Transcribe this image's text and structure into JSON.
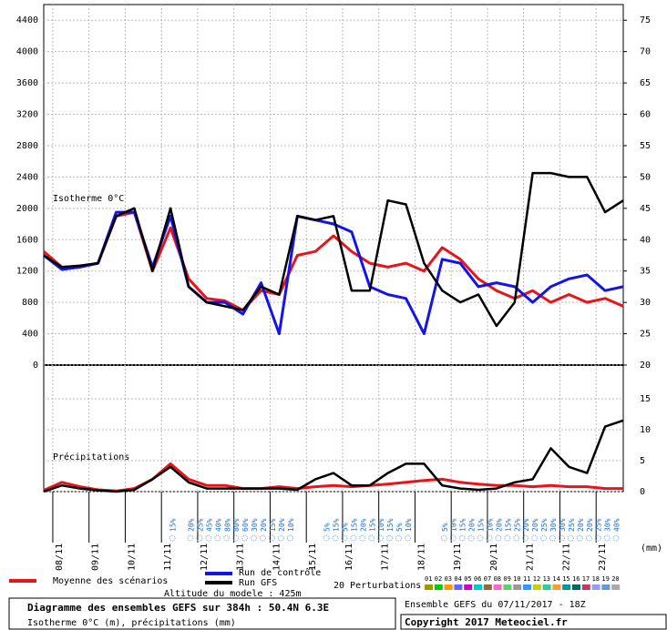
{
  "chart_data": [
    {
      "type": "line",
      "annotation": "Isotherme 0°C",
      "x": [
        0,
        12,
        24,
        36,
        48,
        60,
        72,
        84,
        96,
        108,
        120,
        132,
        144,
        156,
        168,
        180,
        192,
        204,
        216,
        228,
        240,
        252,
        264,
        276,
        288,
        300,
        312,
        324,
        336,
        348,
        360,
        372,
        384
      ],
      "xlim": [
        0,
        384
      ],
      "xticks": [
        {
          "value": 6,
          "label": "08/11"
        },
        {
          "value": 30,
          "label": "09/11"
        },
        {
          "value": 54,
          "label": "10/11"
        },
        {
          "value": 78,
          "label": "11/11"
        },
        {
          "value": 102,
          "label": "12/11"
        },
        {
          "value": 126,
          "label": "13/11"
        },
        {
          "value": 150,
          "label": "14/11"
        },
        {
          "value": 174,
          "label": "15/11"
        },
        {
          "value": 198,
          "label": "16/11"
        },
        {
          "value": 222,
          "label": "17/11"
        },
        {
          "value": 246,
          "label": "18/11"
        },
        {
          "value": 270,
          "label": "19/11"
        },
        {
          "value": 294,
          "label": "20/11"
        },
        {
          "value": 318,
          "label": "21/11"
        },
        {
          "value": 342,
          "label": "22/11"
        },
        {
          "value": 366,
          "label": "23/11"
        }
      ],
      "ylim": [
        0,
        4600
      ],
      "yticks": [
        0,
        400,
        800,
        1200,
        1600,
        2000,
        2400,
        2800,
        3200,
        3600,
        4000,
        4400
      ],
      "y2lim": [
        20,
        77.5
      ],
      "y2ticks": [
        20,
        25,
        30,
        35,
        40,
        45,
        50,
        55,
        60,
        65,
        70,
        75
      ],
      "grid": true,
      "series": [
        {
          "name": "Moyenne des scénarios",
          "color": "#e8141c",
          "values": [
            1450,
            1250,
            1260,
            1300,
            1900,
            1950,
            1200,
            1750,
            1100,
            850,
            820,
            700,
            950,
            900,
            1400,
            1450,
            1650,
            1450,
            1300,
            1250,
            1300,
            1200,
            1500,
            1350,
            1100,
            950,
            850,
            950,
            800,
            900,
            800,
            850,
            750
          ]
        },
        {
          "name": "Run de contrôle",
          "color": "#1414e6",
          "values": [
            1400,
            1220,
            1250,
            1300,
            1950,
            1950,
            1250,
            1900,
            1000,
            800,
            800,
            650,
            1050,
            400,
            1900,
            1850,
            1800,
            1700,
            1000,
            900,
            850,
            400,
            1350,
            1300,
            1000,
            1050,
            1000,
            800,
            1000,
            1100,
            1150,
            950,
            1000
          ]
        },
        {
          "name": "Run GFS",
          "color": "#000000",
          "values": [
            1400,
            1250,
            1270,
            1300,
            1900,
            2000,
            1200,
            2000,
            1000,
            800,
            750,
            700,
            1000,
            900,
            1900,
            1850,
            1900,
            950,
            950,
            2100,
            2050,
            1300,
            950,
            800,
            900,
            500,
            800,
            2450,
            2450,
            2400,
            2400,
            1950,
            2100
          ]
        }
      ]
    },
    {
      "type": "line",
      "annotation": "Précipitations",
      "unit_label": "(mm)",
      "y2lim": [
        0,
        20
      ],
      "y2ticks": [
        0,
        5,
        10,
        15
      ],
      "series": [
        {
          "color": "#e8141c",
          "values": [
            0.2,
            1.5,
            0.8,
            0.3,
            0.1,
            0.5,
            2,
            4.5,
            2,
            1,
            1,
            0.5,
            0.5,
            0.8,
            0.5,
            0.8,
            1,
            0.8,
            1,
            1.2,
            1.5,
            1.8,
            2,
            1.5,
            1.2,
            1,
            1,
            0.8,
            1,
            0.8,
            0.8,
            0.5,
            0.5
          ]
        },
        {
          "color": "#000000",
          "values": [
            0,
            1,
            0.5,
            0.2,
            0,
            0.3,
            2,
            4,
            1.5,
            0.5,
            0.5,
            0.5,
            0.5,
            0.5,
            0.3,
            2,
            3,
            1,
            1,
            3,
            4.5,
            4.5,
            1,
            0.5,
            0.3,
            0.5,
            1.5,
            2,
            7,
            4,
            3,
            10.5,
            11.5
          ]
        }
      ],
      "snow_x": [
        84,
        96,
        102,
        108,
        114,
        120,
        126,
        132,
        138,
        144,
        150,
        156,
        162,
        186,
        192,
        198,
        204,
        210,
        216,
        222,
        228,
        234,
        240,
        264,
        270,
        276,
        282,
        288,
        294,
        300,
        306,
        312,
        318,
        324,
        330,
        336,
        342,
        348,
        354,
        360,
        366,
        372,
        378
      ],
      "snow_values": [
        15,
        20,
        25,
        45,
        40,
        80,
        80,
        60,
        30,
        20,
        15,
        20,
        10,
        5,
        15,
        5,
        15,
        20,
        15,
        10,
        15,
        5,
        10,
        5,
        10,
        15,
        20,
        15,
        10,
        20,
        15,
        25,
        20,
        20,
        25,
        30,
        30,
        25,
        20,
        20,
        25,
        30,
        40
      ],
      "snow_labels": [
        "15%",
        "20%",
        "25%",
        "45%",
        "40%",
        "80%",
        "80%",
        "60%",
        "30%",
        "20%",
        "15%",
        "20%",
        "10%",
        "5%",
        "15%",
        "5%",
        "15%",
        "20%",
        "15%",
        "10%",
        "15%",
        "5%",
        "10%",
        "5%",
        "10%",
        "15%",
        "20%",
        "15%",
        "10%",
        "20%",
        "15%",
        "25%",
        "20%",
        "20%",
        "25%",
        "30%",
        "30%",
        "25%",
        "20%",
        "20%",
        "25%",
        "30%",
        "40%"
      ]
    }
  ],
  "perturbations": {
    "label": "20 Perturbations",
    "names": [
      "01",
      "02",
      "03",
      "04",
      "05",
      "06",
      "07",
      "08",
      "09",
      "10",
      "11",
      "12",
      "13",
      "14",
      "15",
      "16",
      "17",
      "18",
      "19",
      "20"
    ],
    "colors": [
      "#999900",
      "#00cc00",
      "#ff9900",
      "#6666ff",
      "#cc00cc",
      "#00cccc",
      "#996633",
      "#ff66cc",
      "#66cc66",
      "#999999",
      "#3399ff",
      "#cccc00",
      "#33cc99",
      "#ff9933",
      "#009999",
      "#006666",
      "#cc3366",
      "#9999ff",
      "#6699cc",
      "#aaaaaa"
    ]
  },
  "footer": {
    "title": "Diagramme des ensembles GEFS sur 384h : 50.4N 6.3E",
    "subtitle": "Isotherme 0°C (m), précipitations (mm)",
    "altitude": "Altitude du modele : 425m",
    "run": "Ensemble GEFS du 07/11/2017 - 18Z",
    "copyright": "Copyright 2017 Meteociel.fr"
  }
}
